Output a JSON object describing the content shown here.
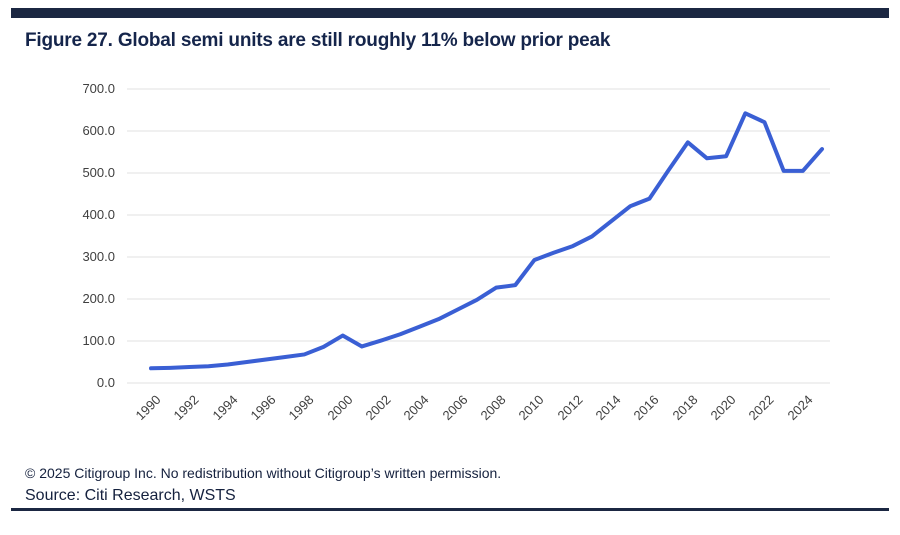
{
  "header": {
    "title": "Figure 27. Global semi units are still roughly 11% below prior peak"
  },
  "footer": {
    "copyright": "© 2025 Citigroup Inc. No redistribution without Citigroup’s written permission.",
    "source": "Source: Citi Research, WSTS"
  },
  "colors": {
    "accent_bar": "#1b2742",
    "line": "#3a5fd4",
    "gridline": "#e0e0e0",
    "tick_text": "#3f3f3f",
    "title_text": "#15254b"
  },
  "chart_data": {
    "type": "line",
    "title": "Figure 27. Global semi units are still roughly 11% below prior peak",
    "xlabel": "",
    "ylabel": "",
    "ylim": [
      0,
      700
    ],
    "grid": "horizontal",
    "legend": "none",
    "x": [
      1990,
      1991,
      1992,
      1993,
      1994,
      1995,
      1996,
      1997,
      1998,
      1999,
      2000,
      2001,
      2002,
      2003,
      2004,
      2005,
      2006,
      2007,
      2008,
      2009,
      2010,
      2011,
      2012,
      2013,
      2014,
      2015,
      2016,
      2017,
      2018,
      2019,
      2020,
      2021,
      2022,
      2023,
      2024,
      2025
    ],
    "series": [
      {
        "name": "Global semi units",
        "values": [
          35,
          36,
          38,
          40,
          44,
          50,
          56,
          62,
          68,
          86,
          113,
          87,
          101,
          116,
          134,
          152,
          175,
          198,
          227,
          233,
          293,
          310,
          326,
          349,
          385,
          421,
          439,
          507,
          573,
          535,
          540,
          642,
          621,
          505,
          505,
          557
        ]
      }
    ],
    "y_ticks": [
      0,
      100,
      200,
      300,
      400,
      500,
      600,
      700
    ],
    "y_tick_labels": [
      "0.0",
      "100.0",
      "200.0",
      "300.0",
      "400.0",
      "500.0",
      "600.0",
      "700.0"
    ],
    "x_tick_labels": [
      "1990",
      "1992",
      "1994",
      "1996",
      "1998",
      "2000",
      "2002",
      "2004",
      "2006",
      "2008",
      "2010",
      "2012",
      "2014",
      "2016",
      "2018",
      "2020",
      "2022",
      "2024"
    ]
  }
}
